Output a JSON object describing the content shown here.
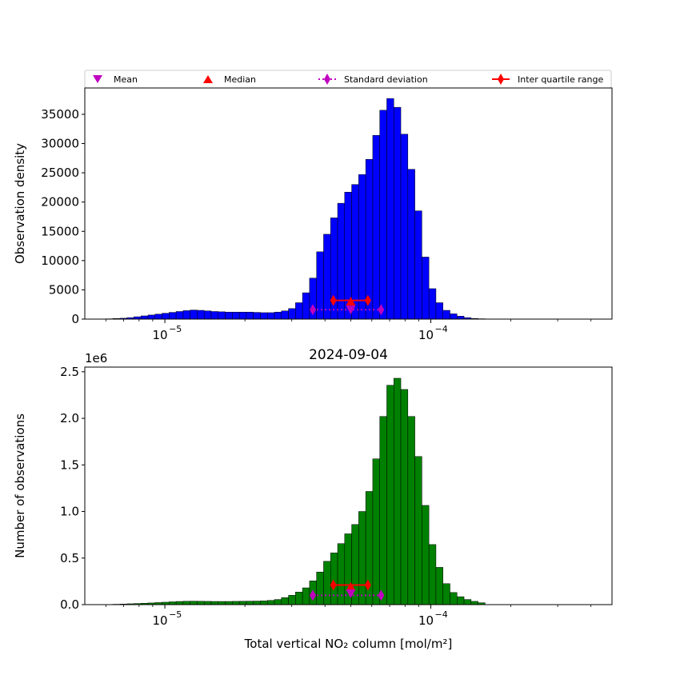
{
  "legend": {
    "items": [
      {
        "label": "Mean",
        "marker": "triangle-down",
        "color": "#bf00bf"
      },
      {
        "label": "Median",
        "marker": "triangle-up",
        "color": "#ff0000"
      },
      {
        "label": "Standard deviation",
        "marker": "thin-diamond-dotted",
        "color": "#bf00bf"
      },
      {
        "label": "Inter quartile range",
        "marker": "thin-diamond-solid",
        "color": "#ff0000"
      }
    ]
  },
  "chart_data": [
    {
      "type": "bar",
      "title": "",
      "xlabel": "",
      "ylabel": "Observation density",
      "xscale": "log",
      "xlim": [
        5e-06,
        0.00048
      ],
      "ylim": [
        0,
        39500
      ],
      "yticks": [
        0,
        5000,
        10000,
        15000,
        20000,
        25000,
        30000,
        35000
      ],
      "ytick_labels": [
        "0",
        "5000",
        "10000",
        "15000",
        "20000",
        "25000",
        "30000",
        "35000"
      ],
      "xticks": [
        1e-05,
        0.0001
      ],
      "xtick_labels": [
        "10",
        "10"
      ],
      "xtick_exponents": [
        "−5",
        "−4"
      ],
      "color": "#0000ff",
      "bin_range": [
        6e-06,
        0.00016
      ],
      "values": [
        50,
        100,
        150,
        250,
        400,
        550,
        700,
        850,
        1000,
        1150,
        1300,
        1450,
        1550,
        1500,
        1400,
        1300,
        1250,
        1200,
        1200,
        1200,
        1200,
        1150,
        1100,
        1100,
        1200,
        1400,
        1800,
        2800,
        4500,
        7000,
        11500,
        14500,
        17300,
        19800,
        21700,
        23000,
        24700,
        27300,
        31400,
        35700,
        37700,
        36200,
        31600,
        25600,
        18500,
        10600,
        5200,
        2800,
        1500,
        900,
        500,
        250,
        120,
        60
      ],
      "markers": {
        "mean": {
          "x": 5e-05,
          "y": 1600
        },
        "median": {
          "x": 5e-05,
          "y": 3000
        },
        "std": {
          "x": [
            3.6e-05,
            6.5e-05
          ],
          "y": 1600
        },
        "iqr": {
          "x": [
            4.3e-05,
            5.8e-05
          ],
          "y": 3200
        }
      }
    },
    {
      "type": "bar",
      "title": "2024-09-04",
      "xlabel": "Total vertical NO₂ column [mol/m²]",
      "ylabel": "Number of observations",
      "yscale_label": "1e6",
      "xscale": "log",
      "xlim": [
        5e-06,
        0.00048
      ],
      "ylim": [
        0,
        2.55
      ],
      "yticks": [
        0,
        0.5,
        1.0,
        1.5,
        2.0,
        2.5
      ],
      "ytick_labels": [
        "0.0",
        "0.5",
        "1.0",
        "1.5",
        "2.0",
        "2.5"
      ],
      "xticks": [
        1e-05,
        0.0001
      ],
      "xtick_labels": [
        "10",
        "10"
      ],
      "xtick_exponents": [
        "−5",
        "−4"
      ],
      "color": "#008000",
      "bin_range": [
        6e-06,
        0.00016
      ],
      "values": [
        0.002,
        0.004,
        0.006,
        0.009,
        0.012,
        0.015,
        0.018,
        0.022,
        0.026,
        0.03,
        0.034,
        0.036,
        0.037,
        0.036,
        0.035,
        0.034,
        0.034,
        0.034,
        0.035,
        0.036,
        0.037,
        0.038,
        0.04,
        0.045,
        0.055,
        0.075,
        0.1,
        0.135,
        0.18,
        0.255,
        0.35,
        0.465,
        0.555,
        0.655,
        0.76,
        0.86,
        1.0,
        1.215,
        1.565,
        2.02,
        2.355,
        2.43,
        2.31,
        2.02,
        1.59,
        1.065,
        0.645,
        0.4,
        0.225,
        0.13,
        0.085,
        0.055,
        0.035,
        0.02
      ],
      "markers": {
        "mean": {
          "x": 5e-05,
          "y": 0.12
        },
        "median": {
          "x": 5e-05,
          "y": 0.19
        },
        "std": {
          "x": [
            3.6e-05,
            6.5e-05
          ],
          "y": 0.1
        },
        "iqr": {
          "x": [
            4.3e-05,
            5.8e-05
          ],
          "y": 0.21
        }
      }
    }
  ]
}
